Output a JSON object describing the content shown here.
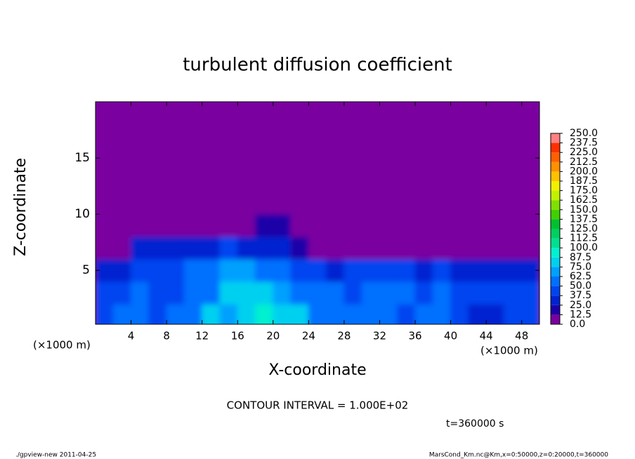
{
  "chart_data": {
    "type": "heatmap",
    "title": "turbulent diffusion coefficient",
    "xlabel": "X-coordinate",
    "ylabel": "Z-coordinate",
    "xunit": "(×1000 m)",
    "yunit": "(×1000 m)",
    "contour_note": "CONTOUR INTERVAL = 1.000E+02",
    "time_note": "t=360000 s",
    "footer_left": "./gpview-new  2011-04-25",
    "footer_right": "MarsCond_Km.nc@Km,x=0:50000,z=0:20000,t=360000",
    "xlim": [
      0,
      50
    ],
    "ylim": [
      0.2,
      20
    ],
    "xticks": [
      4,
      8,
      12,
      16,
      20,
      24,
      28,
      32,
      36,
      40,
      44,
      48
    ],
    "yticks": [
      5,
      10,
      15
    ],
    "x": [
      1,
      3,
      5,
      7,
      9,
      11,
      13,
      15,
      17,
      19,
      21,
      23,
      25,
      27,
      29,
      31,
      33,
      35,
      37,
      39,
      41,
      43,
      45,
      47,
      49
    ],
    "y": [
      1,
      3,
      5,
      7,
      9,
      11,
      13,
      15,
      17,
      19
    ],
    "z": [
      [
        45,
        50,
        55,
        45,
        50,
        60,
        75,
        70,
        85,
        90,
        80,
        75,
        60,
        55,
        50,
        55,
        60,
        45,
        50,
        55,
        40,
        25,
        35,
        45,
        40
      ],
      [
        40,
        45,
        50,
        40,
        45,
        55,
        60,
        75,
        80,
        85,
        70,
        60,
        55,
        50,
        45,
        50,
        55,
        50,
        45,
        50,
        45,
        40,
        45,
        40,
        45
      ],
      [
        30,
        35,
        40,
        45,
        40,
        50,
        55,
        65,
        70,
        60,
        55,
        45,
        40,
        35,
        40,
        45,
        45,
        40,
        35,
        40,
        35,
        30,
        35,
        30,
        35
      ],
      [
        5,
        10,
        25,
        30,
        25,
        30,
        35,
        40,
        35,
        30,
        30,
        20,
        5,
        0,
        5,
        10,
        5,
        5,
        5,
        0,
        5,
        0,
        0,
        0,
        5
      ],
      [
        0,
        0,
        0,
        0,
        0,
        0,
        0,
        5,
        10,
        15,
        15,
        10,
        0,
        0,
        0,
        0,
        0,
        0,
        0,
        0,
        0,
        0,
        0,
        0,
        0
      ],
      [
        0,
        0,
        0,
        0,
        0,
        0,
        0,
        0,
        0,
        0,
        0,
        0,
        0,
        0,
        0,
        0,
        0,
        0,
        0,
        0,
        0,
        0,
        0,
        0,
        0
      ],
      [
        0,
        0,
        0,
        0,
        0,
        0,
        0,
        0,
        0,
        0,
        0,
        0,
        0,
        0,
        0,
        0,
        0,
        0,
        0,
        0,
        0,
        0,
        0,
        0,
        0
      ],
      [
        0,
        0,
        0,
        0,
        0,
        0,
        0,
        0,
        0,
        0,
        0,
        0,
        0,
        0,
        0,
        0,
        0,
        0,
        0,
        0,
        0,
        0,
        0,
        0,
        0
      ],
      [
        0,
        0,
        0,
        0,
        0,
        0,
        0,
        0,
        0,
        0,
        0,
        0,
        0,
        0,
        0,
        0,
        0,
        0,
        0,
        0,
        0,
        0,
        0,
        0,
        0
      ],
      [
        0,
        0,
        0,
        0,
        0,
        0,
        0,
        0,
        0,
        0,
        0,
        0,
        0,
        0,
        0,
        0,
        0,
        0,
        0,
        0,
        0,
        0,
        0,
        0,
        0
      ]
    ],
    "levels": [
      {
        "value": 0,
        "label": "0.0"
      },
      12.5,
      {
        "value": 25,
        "label": "25.0"
      },
      37.5,
      {
        "value": 50,
        "label": "50.0"
      },
      62.5,
      {
        "value": 75,
        "label": "75.0"
      },
      87.5,
      {
        "value": 100,
        "label": "100.0"
      },
      112.5,
      {
        "value": 125,
        "label": "125.0"
      },
      137.5,
      {
        "value": 150,
        "label": "150.0"
      },
      162.5,
      {
        "value": 175,
        "label": "175.0"
      },
      187.5,
      {
        "value": 200,
        "label": "200.0"
      },
      212.5,
      {
        "value": 225,
        "label": "225.0"
      },
      237.5,
      {
        "value": 250,
        "label": "250.0"
      }
    ],
    "colors": [
      "#7a00a0",
      "#1c00a8",
      "#0022d0",
      "#0044f0",
      "#0070ff",
      "#00a0ff",
      "#00d0f0",
      "#00f0d0",
      "#00e090",
      "#00d060",
      "#00c030",
      "#40d000",
      "#80e000",
      "#c0f000",
      "#f0f000",
      "#ffc000",
      "#ff9000",
      "#ff6000",
      "#ff3000",
      "#ff8080"
    ]
  }
}
